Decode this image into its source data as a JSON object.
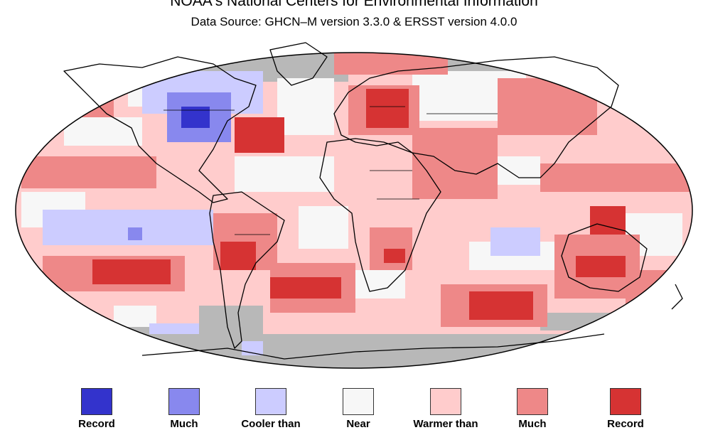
{
  "header": {
    "title": "NOAA's National Centers for Environmental Information",
    "subtitle": "Data Source: GHCN–M version 3.3.0 & ERSST version 4.0.0"
  },
  "colors": {
    "no_data": "#b8b8b8",
    "record_coldest": "#3333cc",
    "much_cooler": "#8888ee",
    "cooler": "#ccccff",
    "near_average": "#f7f7f7",
    "warmer": "#ffcccc",
    "much_warmer": "#ee8888",
    "record_warmest": "#d63333",
    "coastline": "#000000"
  },
  "legend": [
    {
      "label": "Record",
      "color": "#3333cc"
    },
    {
      "label": "Much",
      "color": "#8888ee"
    },
    {
      "label": "Cooler than",
      "color": "#ccccff"
    },
    {
      "label": "Near",
      "color": "#f7f7f7"
    },
    {
      "label": "Warmer than",
      "color": "#ffcccc"
    },
    {
      "label": "Much",
      "color": "#ee8888"
    },
    {
      "label": "Record",
      "color": "#d63333"
    }
  ]
}
